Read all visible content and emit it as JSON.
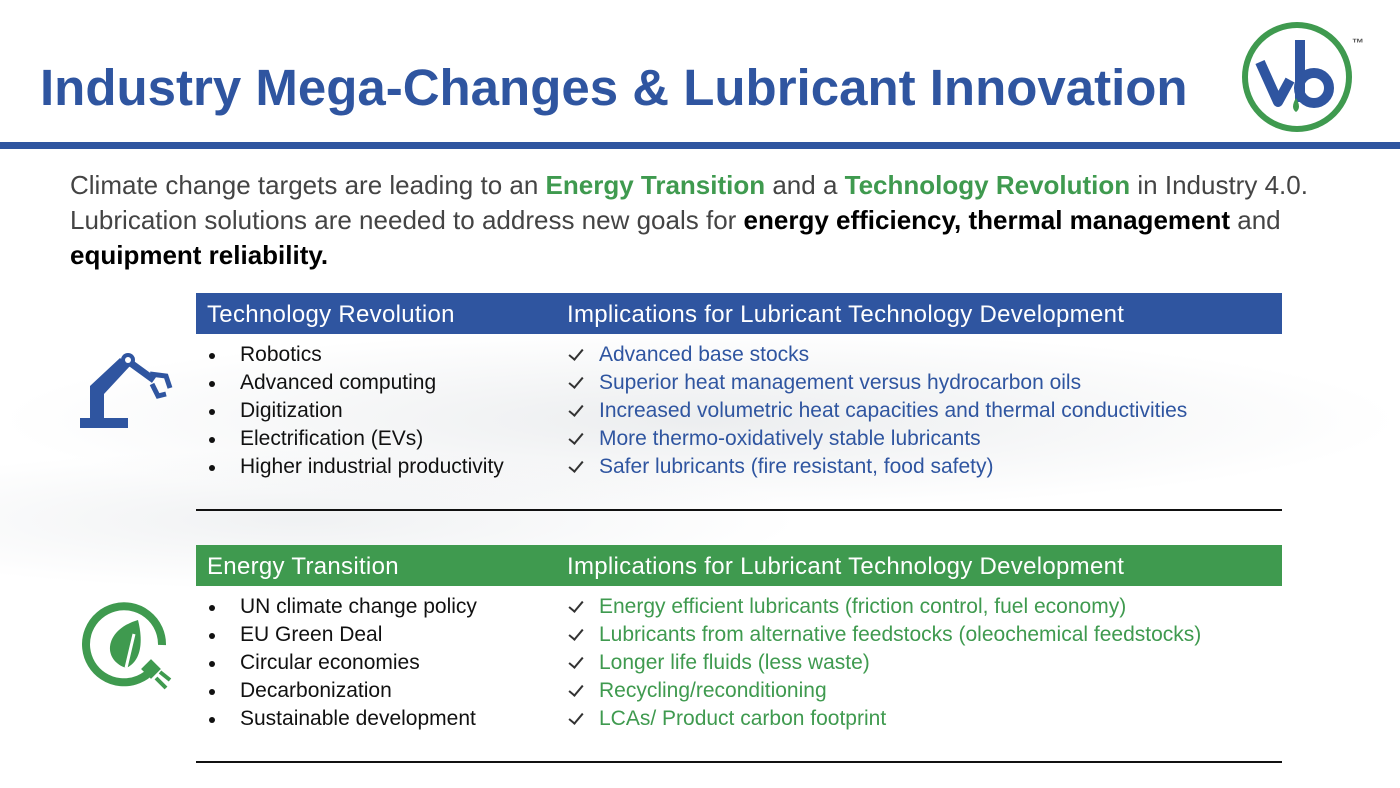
{
  "header": {
    "title": "Industry Mega-Changes & Lubricant Innovation",
    "trademark": "™"
  },
  "intro": {
    "segments": [
      {
        "text": "Climate change targets are leading to an ",
        "style": "normal"
      },
      {
        "text": "Energy Transition",
        "style": "green"
      },
      {
        "text": " and a ",
        "style": "normal"
      },
      {
        "text": "Technology Revolution",
        "style": "green"
      },
      {
        "text": " in Industry 4.0. Lubrication solutions are needed to address new goals for ",
        "style": "normal"
      },
      {
        "text": "energy efficiency, thermal management",
        "style": "bold"
      },
      {
        "text": " and ",
        "style": "normal"
      },
      {
        "text": "equipment reliability.",
        "style": "bold"
      }
    ]
  },
  "tables": [
    {
      "theme": "blue",
      "headers": [
        "Technology Revolution",
        "Implications for Lubricant Technology Development"
      ],
      "left": [
        "Robotics",
        "Advanced computing",
        "Digitization",
        "Electrification (EVs)",
        "Higher industrial productivity"
      ],
      "right": [
        "Advanced base stocks",
        "Superior heat management versus hydrocarbon oils",
        "Increased volumetric heat capacities and thermal conductivities",
        "More thermo-oxidatively stable lubricants",
        "Safer lubricants (fire resistant, food safety)"
      ]
    },
    {
      "theme": "green",
      "headers": [
        "Energy Transition",
        "Implications for Lubricant Technology Development"
      ],
      "left": [
        "UN climate change policy",
        "EU Green Deal",
        "Circular economies",
        "Decarbonization",
        "Sustainable development"
      ],
      "right": [
        "Energy efficient lubricants (friction control, fuel economy)",
        "Lubricants from alternative feedstocks (oleochemical feedstocks)",
        "Longer life fluids (less waste)",
        "Recycling/reconditioning",
        "LCAs/ Product carbon footprint"
      ]
    }
  ]
}
